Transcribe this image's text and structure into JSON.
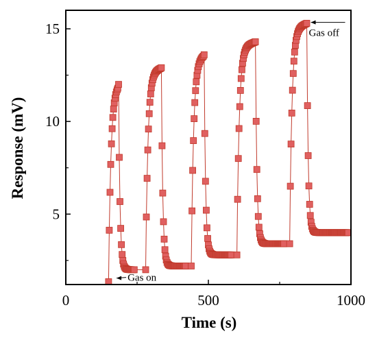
{
  "chart_data": {
    "type": "scatter",
    "xlabel": "Time (s)",
    "ylabel": "Response  (mV)",
    "xlim": [
      0,
      1000
    ],
    "ylim": [
      1.2,
      16
    ],
    "xticks": [
      0,
      500,
      1000
    ],
    "yticks": [
      5,
      10,
      15
    ],
    "grid": false,
    "legend": "none",
    "series": [
      {
        "marker": "square",
        "color": "#e06060",
        "edge_color": "#c0392b",
        "line_color": "#c0392b",
        "pulses": [
          {
            "on": 150,
            "off": 185,
            "end": 240,
            "base": 1.35,
            "peak": 12.0,
            "recover": 2.0
          },
          {
            "on": 280,
            "off": 335,
            "end": 420,
            "base": 2.0,
            "peak": 12.9,
            "recover": 2.2
          },
          {
            "on": 440,
            "off": 485,
            "end": 580,
            "base": 2.2,
            "peak": 13.6,
            "recover": 2.8
          },
          {
            "on": 600,
            "off": 665,
            "end": 765,
            "base": 2.8,
            "peak": 14.3,
            "recover": 3.4
          },
          {
            "on": 785,
            "off": 845,
            "end": 990,
            "base": 3.4,
            "peak": 15.3,
            "recover": 4.0
          }
        ]
      }
    ],
    "annotations": [
      {
        "text": "Gas on",
        "x": 130,
        "y": 1.4
      },
      {
        "text": "Gas off",
        "x": 845,
        "y": 15.2
      }
    ]
  }
}
